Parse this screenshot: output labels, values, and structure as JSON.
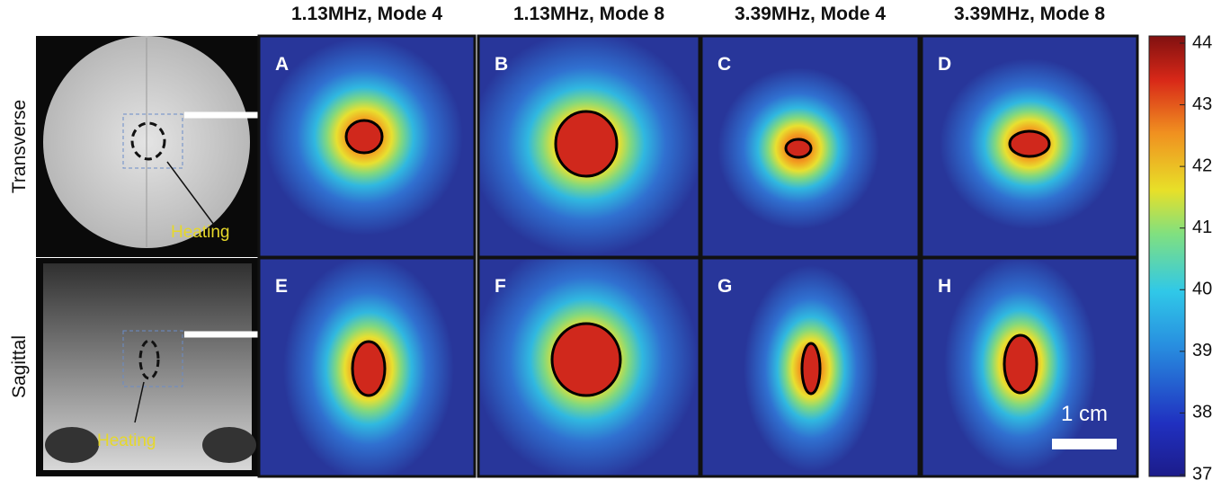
{
  "columns": [
    "1.13MHz, Mode 4",
    "1.13MHz, Mode 8",
    "3.39MHz, Mode 4",
    "3.39MHz, Mode 8"
  ],
  "rows": [
    "Transverse",
    "Sagittal"
  ],
  "panels": [
    "A",
    "B",
    "C",
    "D",
    "E",
    "F",
    "G",
    "H"
  ],
  "annotations": {
    "transverse_heating": "Heating",
    "sagittal_heating": "Heating",
    "scale_bar": "1 cm"
  },
  "colorbar": {
    "lim": [
      37,
      44
    ],
    "ticks": [
      37,
      38,
      39,
      40,
      41,
      42,
      43,
      44
    ]
  }
}
